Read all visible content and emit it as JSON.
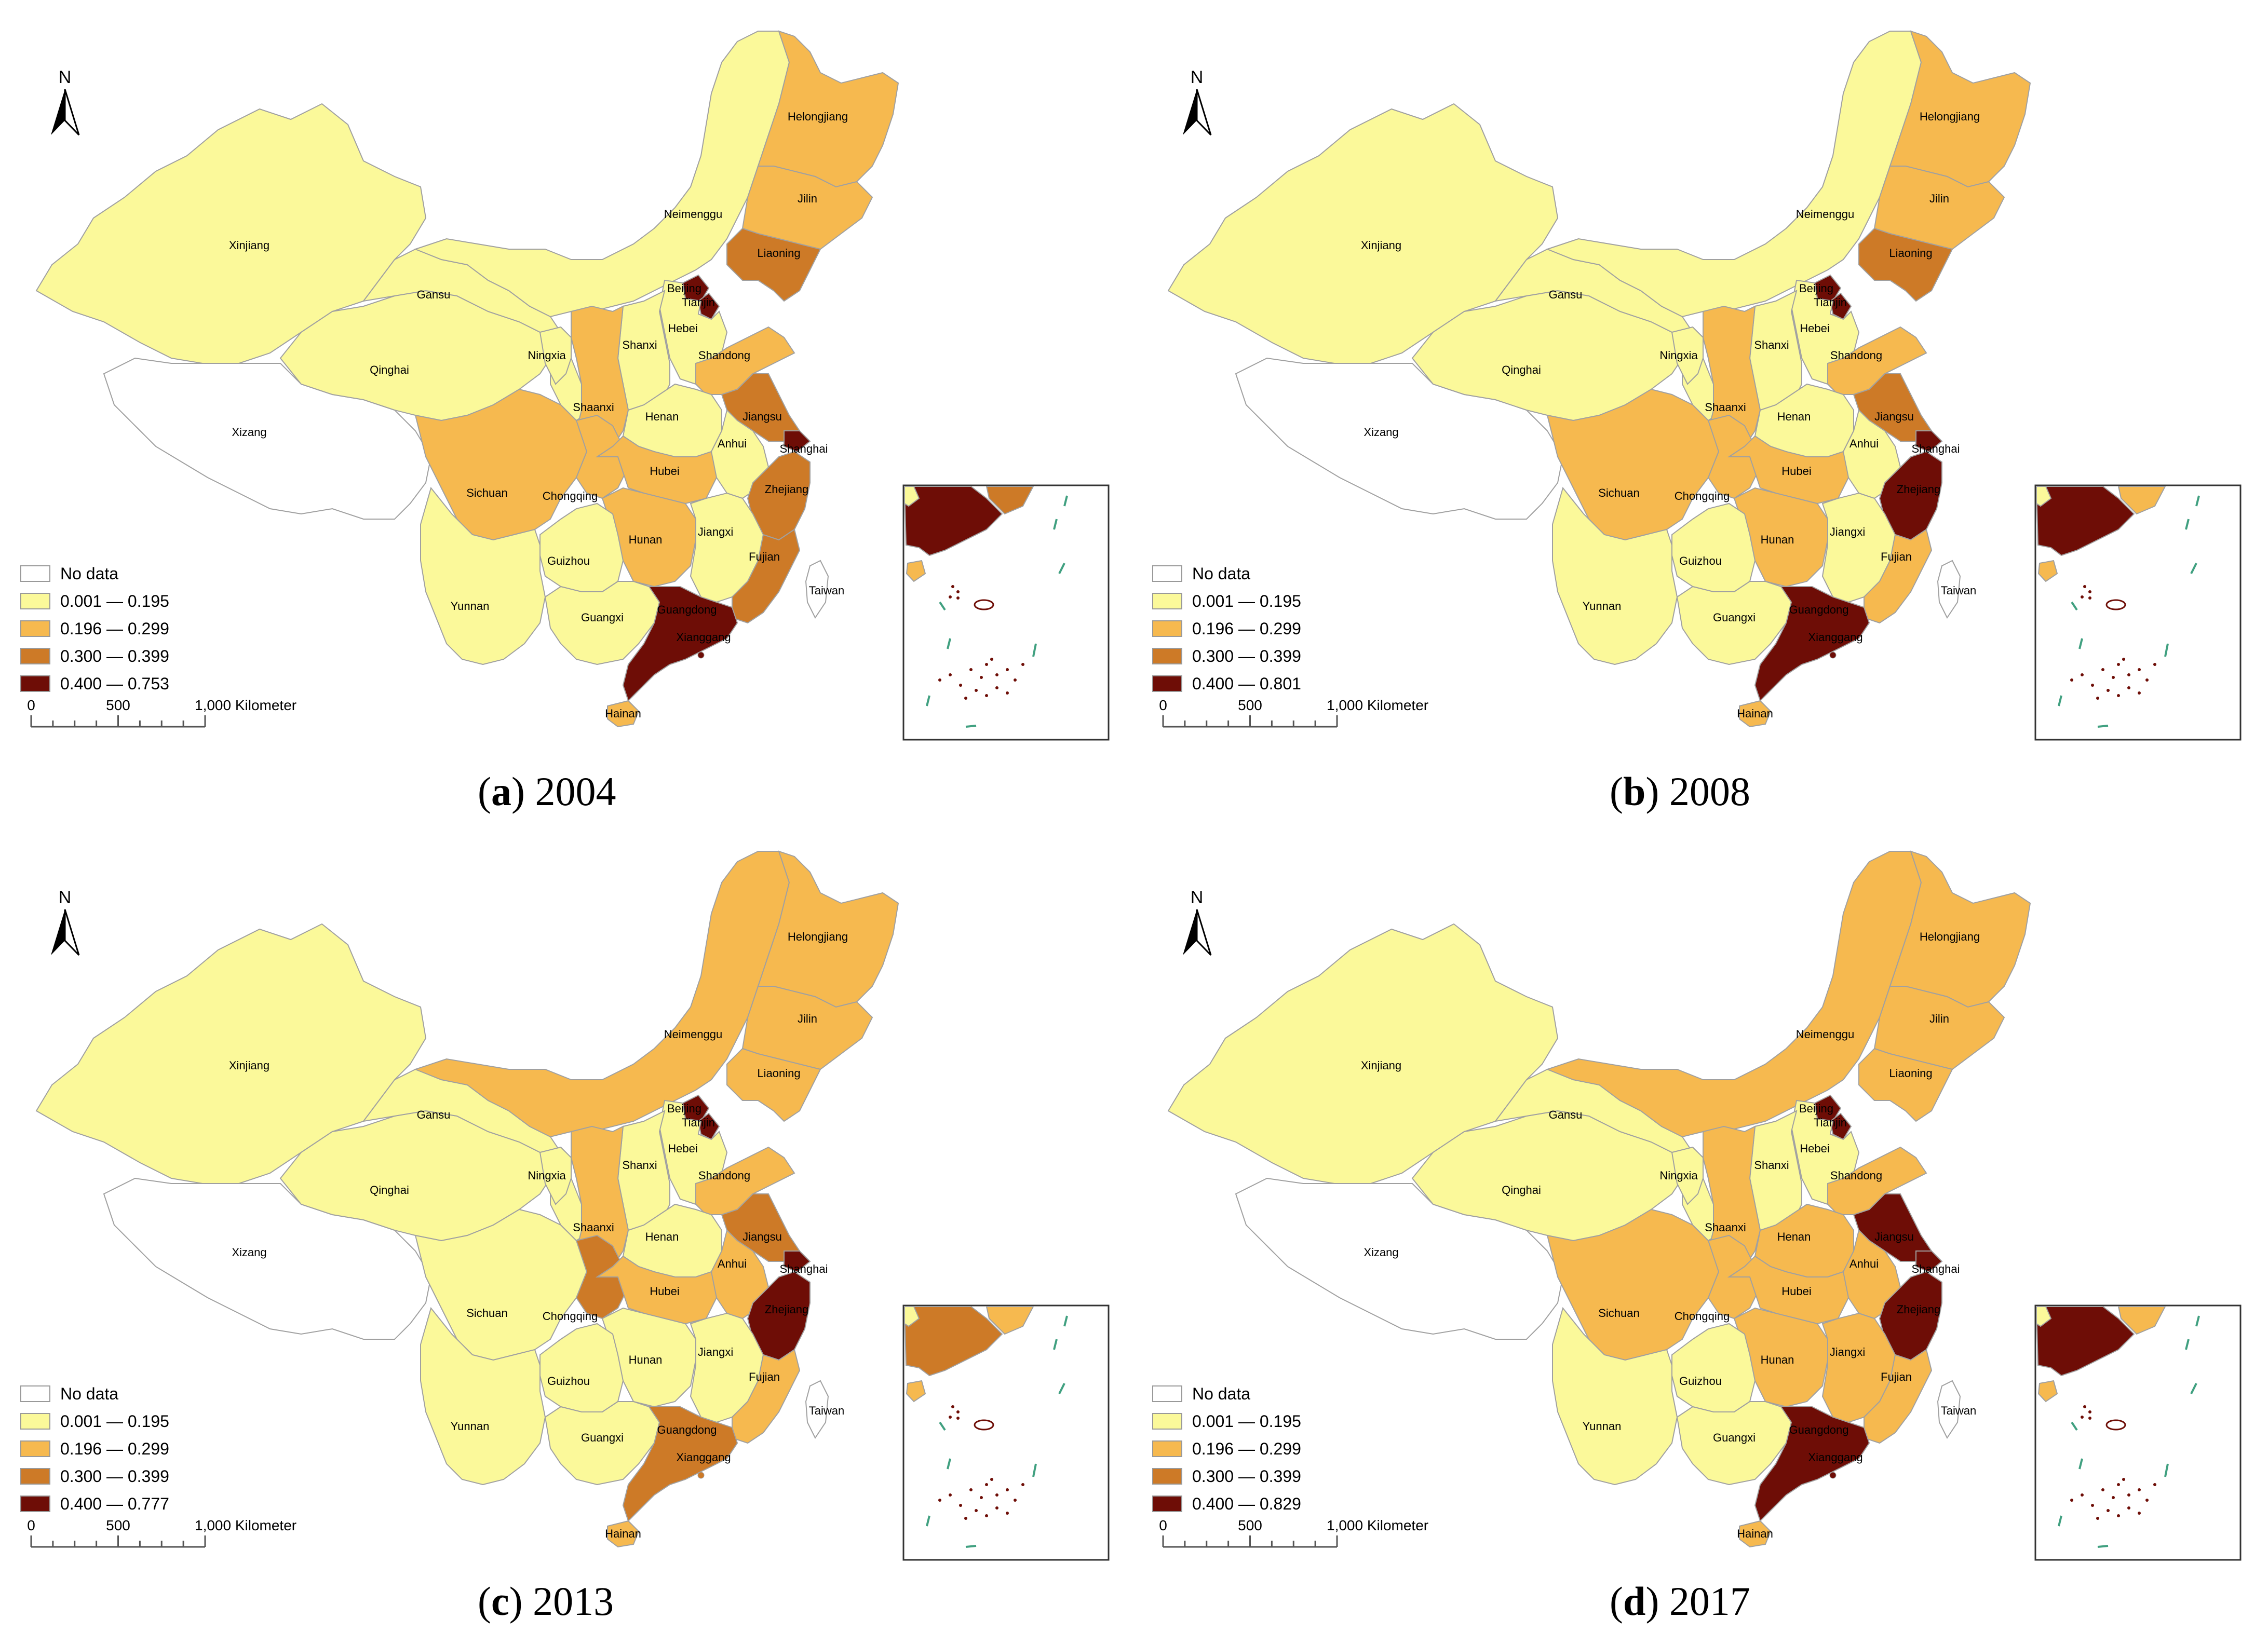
{
  "colors": {
    "no_data": "#ffffff",
    "c1": "#fbf99a",
    "c2": "#f6b94f",
    "c3": "#cd7a27",
    "c4": "#6e0d06",
    "border": "#a0a0a0",
    "inset_green": "#40a080"
  },
  "north_label": "N",
  "scale": {
    "ticks": [
      "0",
      "500",
      "1,000 Kilometer"
    ]
  },
  "legend_no_data": "No data",
  "panels": [
    {
      "id": "a",
      "year": "2004",
      "legend": [
        "0.001 — 0.195",
        "0.196 — 0.299",
        "0.300 — 0.399",
        "0.400 — 0.753"
      ],
      "classes": {
        "Xinjiang": 1,
        "Xizang": 0,
        "Qinghai": 1,
        "Gansu": 1,
        "Neimenggu": 1,
        "Heilongjiang": 2,
        "Jilin": 2,
        "Liaoning": 3,
        "Beijing": 4,
        "Tianjin": 4,
        "Hebei": 1,
        "Shanxi": 1,
        "Shandong": 2,
        "Ningxia": 1,
        "Shaanxi": 2,
        "Henan": 1,
        "Jiangsu": 3,
        "Anhui": 1,
        "Shanghai": 4,
        "Sichuan": 2,
        "Chongqing": 2,
        "Hubei": 2,
        "Zhejiang": 3,
        "Hunan": 2,
        "Jiangxi": 1,
        "Fujian": 3,
        "Guizhou": 1,
        "Yunnan": 1,
        "Guangxi": 1,
        "Guangdong": 4,
        "Hainan": 2,
        "Taiwan": 0
      }
    },
    {
      "id": "b",
      "year": "2008",
      "legend": [
        "0.001 — 0.195",
        "0.196 — 0.299",
        "0.300 — 0.399",
        "0.400 — 0.801"
      ],
      "classes": {
        "Xinjiang": 1,
        "Xizang": 0,
        "Qinghai": 1,
        "Gansu": 1,
        "Neimenggu": 1,
        "Heilongjiang": 2,
        "Jilin": 2,
        "Liaoning": 3,
        "Beijing": 4,
        "Tianjin": 4,
        "Hebei": 1,
        "Shanxi": 1,
        "Shandong": 2,
        "Ningxia": 1,
        "Shaanxi": 2,
        "Henan": 1,
        "Jiangsu": 3,
        "Anhui": 1,
        "Shanghai": 4,
        "Sichuan": 2,
        "Chongqing": 2,
        "Hubei": 2,
        "Zhejiang": 4,
        "Hunan": 2,
        "Jiangxi": 1,
        "Fujian": 2,
        "Guizhou": 1,
        "Yunnan": 1,
        "Guangxi": 1,
        "Guangdong": 4,
        "Hainan": 2,
        "Taiwan": 0
      }
    },
    {
      "id": "c",
      "year": "2013",
      "legend": [
        "0.001 — 0.195",
        "0.196 — 0.299",
        "0.300 — 0.399",
        "0.400 — 0.777"
      ],
      "classes": {
        "Xinjiang": 1,
        "Xizang": 0,
        "Qinghai": 1,
        "Gansu": 1,
        "Neimenggu": 2,
        "Heilongjiang": 2,
        "Jilin": 2,
        "Liaoning": 2,
        "Beijing": 4,
        "Tianjin": 4,
        "Hebei": 1,
        "Shanxi": 1,
        "Shandong": 2,
        "Ningxia": 1,
        "Shaanxi": 2,
        "Henan": 1,
        "Jiangsu": 3,
        "Anhui": 2,
        "Shanghai": 4,
        "Sichuan": 1,
        "Chongqing": 3,
        "Hubei": 2,
        "Zhejiang": 4,
        "Hunan": 1,
        "Jiangxi": 1,
        "Fujian": 2,
        "Guizhou": 1,
        "Yunnan": 1,
        "Guangxi": 1,
        "Guangdong": 3,
        "Hainan": 2,
        "Taiwan": 0
      }
    },
    {
      "id": "d",
      "year": "2017",
      "legend": [
        "0.001 — 0.195",
        "0.196 — 0.299",
        "0.300 — 0.399",
        "0.400 — 0.829"
      ],
      "classes": {
        "Xinjiang": 1,
        "Xizang": 0,
        "Qinghai": 1,
        "Gansu": 1,
        "Neimenggu": 2,
        "Heilongjiang": 2,
        "Jilin": 2,
        "Liaoning": 2,
        "Beijing": 4,
        "Tianjin": 4,
        "Hebei": 1,
        "Shanxi": 1,
        "Shandong": 2,
        "Ningxia": 1,
        "Shaanxi": 2,
        "Henan": 2,
        "Jiangsu": 4,
        "Anhui": 2,
        "Shanghai": 4,
        "Sichuan": 2,
        "Chongqing": 2,
        "Hubei": 2,
        "Zhejiang": 4,
        "Hunan": 2,
        "Jiangxi": 2,
        "Fujian": 2,
        "Guizhou": 1,
        "Yunnan": 1,
        "Guangxi": 1,
        "Guangdong": 4,
        "Hainan": 2,
        "Taiwan": 0
      }
    }
  ],
  "province_labels": {
    "Xinjiang": "Xinjiang",
    "Xizang": "Xizang",
    "Qinghai": "Qinghai",
    "Gansu": "Gansu",
    "Neimenggu": "Neimenggu",
    "Heilongjiang": "Helongjiang",
    "Jilin": "Jilin",
    "Liaoning": "Liaoning",
    "Beijing": "Beijing",
    "Tianjin": "Tianjin",
    "Hebei": "Hebei",
    "Shanxi": "Shanxi",
    "Shandong": "Shandong",
    "Ningxia": "Ningxia",
    "Shaanxi": "Shaanxi",
    "Henan": "Henan",
    "Jiangsu": "Jiangsu",
    "Anhui": "Anhui",
    "Shanghai": "Shanghai",
    "Sichuan": "Sichuan",
    "Chongqing": "Chongqing",
    "Hubei": "Hubei",
    "Zhejiang": "Zhejiang",
    "Hunan": "Hunan",
    "Jiangxi": "Jiangxi",
    "Fujian": "Fujian",
    "Guizhou": "Guizhou",
    "Yunnan": "Yunnan",
    "Guangxi": "Guangxi",
    "Guangdong": "Guangdong",
    "Xianggang": "Xianggang",
    "Hainan": "Hainan",
    "Taiwan": "Taiwan"
  }
}
